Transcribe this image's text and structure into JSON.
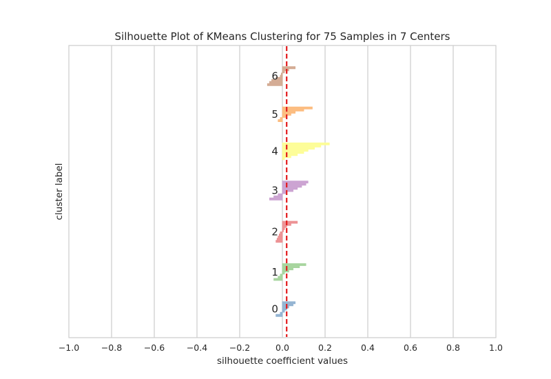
{
  "chart_data": {
    "type": "area",
    "title": "Silhouette Plot of KMeans Clustering for 75 Samples in 7 Centers",
    "xlabel": "silhouette coefficient values",
    "ylabel": "cluster label",
    "xlim": [
      -1.0,
      1.0
    ],
    "xticks": [
      "−1.0",
      "−0.8",
      "−0.6",
      "−0.4",
      "−0.2",
      "0.0",
      "0.2",
      "0.4",
      "0.6",
      "0.8",
      "1.0"
    ],
    "grid": true,
    "average_silhouette": 0.02,
    "clusters": [
      {
        "label": "0",
        "color": "#8fb1d1",
        "values": [
          0.06,
          0.05,
          0.03,
          0.02,
          0.01,
          -0.01,
          -0.03
        ]
      },
      {
        "label": "1",
        "color": "#a3d39a",
        "values": [
          0.11,
          0.08,
          0.05,
          0.03,
          0.01,
          -0.01,
          -0.02,
          -0.04
        ]
      },
      {
        "label": "2",
        "color": "#ec8d8f",
        "values": [
          0.07,
          0.04,
          0.02,
          0.01,
          0.005,
          -0.01,
          -0.015,
          -0.02,
          -0.025,
          -0.03
        ]
      },
      {
        "label": "3",
        "color": "#c99fd0",
        "values": [
          0.12,
          0.11,
          0.09,
          0.07,
          0.05,
          0.02,
          -0.02,
          -0.04,
          -0.06
        ]
      },
      {
        "label": "4",
        "color": "#fdfd94",
        "values": [
          0.22,
          0.18,
          0.15,
          0.12,
          0.1,
          0.07,
          0.04,
          0.01
        ]
      },
      {
        "label": "5",
        "color": "#fcb97a",
        "values": [
          0.14,
          0.1,
          0.06,
          0.04,
          0.02,
          -0.01,
          -0.02
        ]
      },
      {
        "label": "6",
        "color": "#d2a88f",
        "values": [
          0.06,
          0.03,
          0.01,
          -0.005,
          -0.01,
          -0.03,
          -0.05,
          -0.06,
          -0.07
        ]
      }
    ]
  }
}
